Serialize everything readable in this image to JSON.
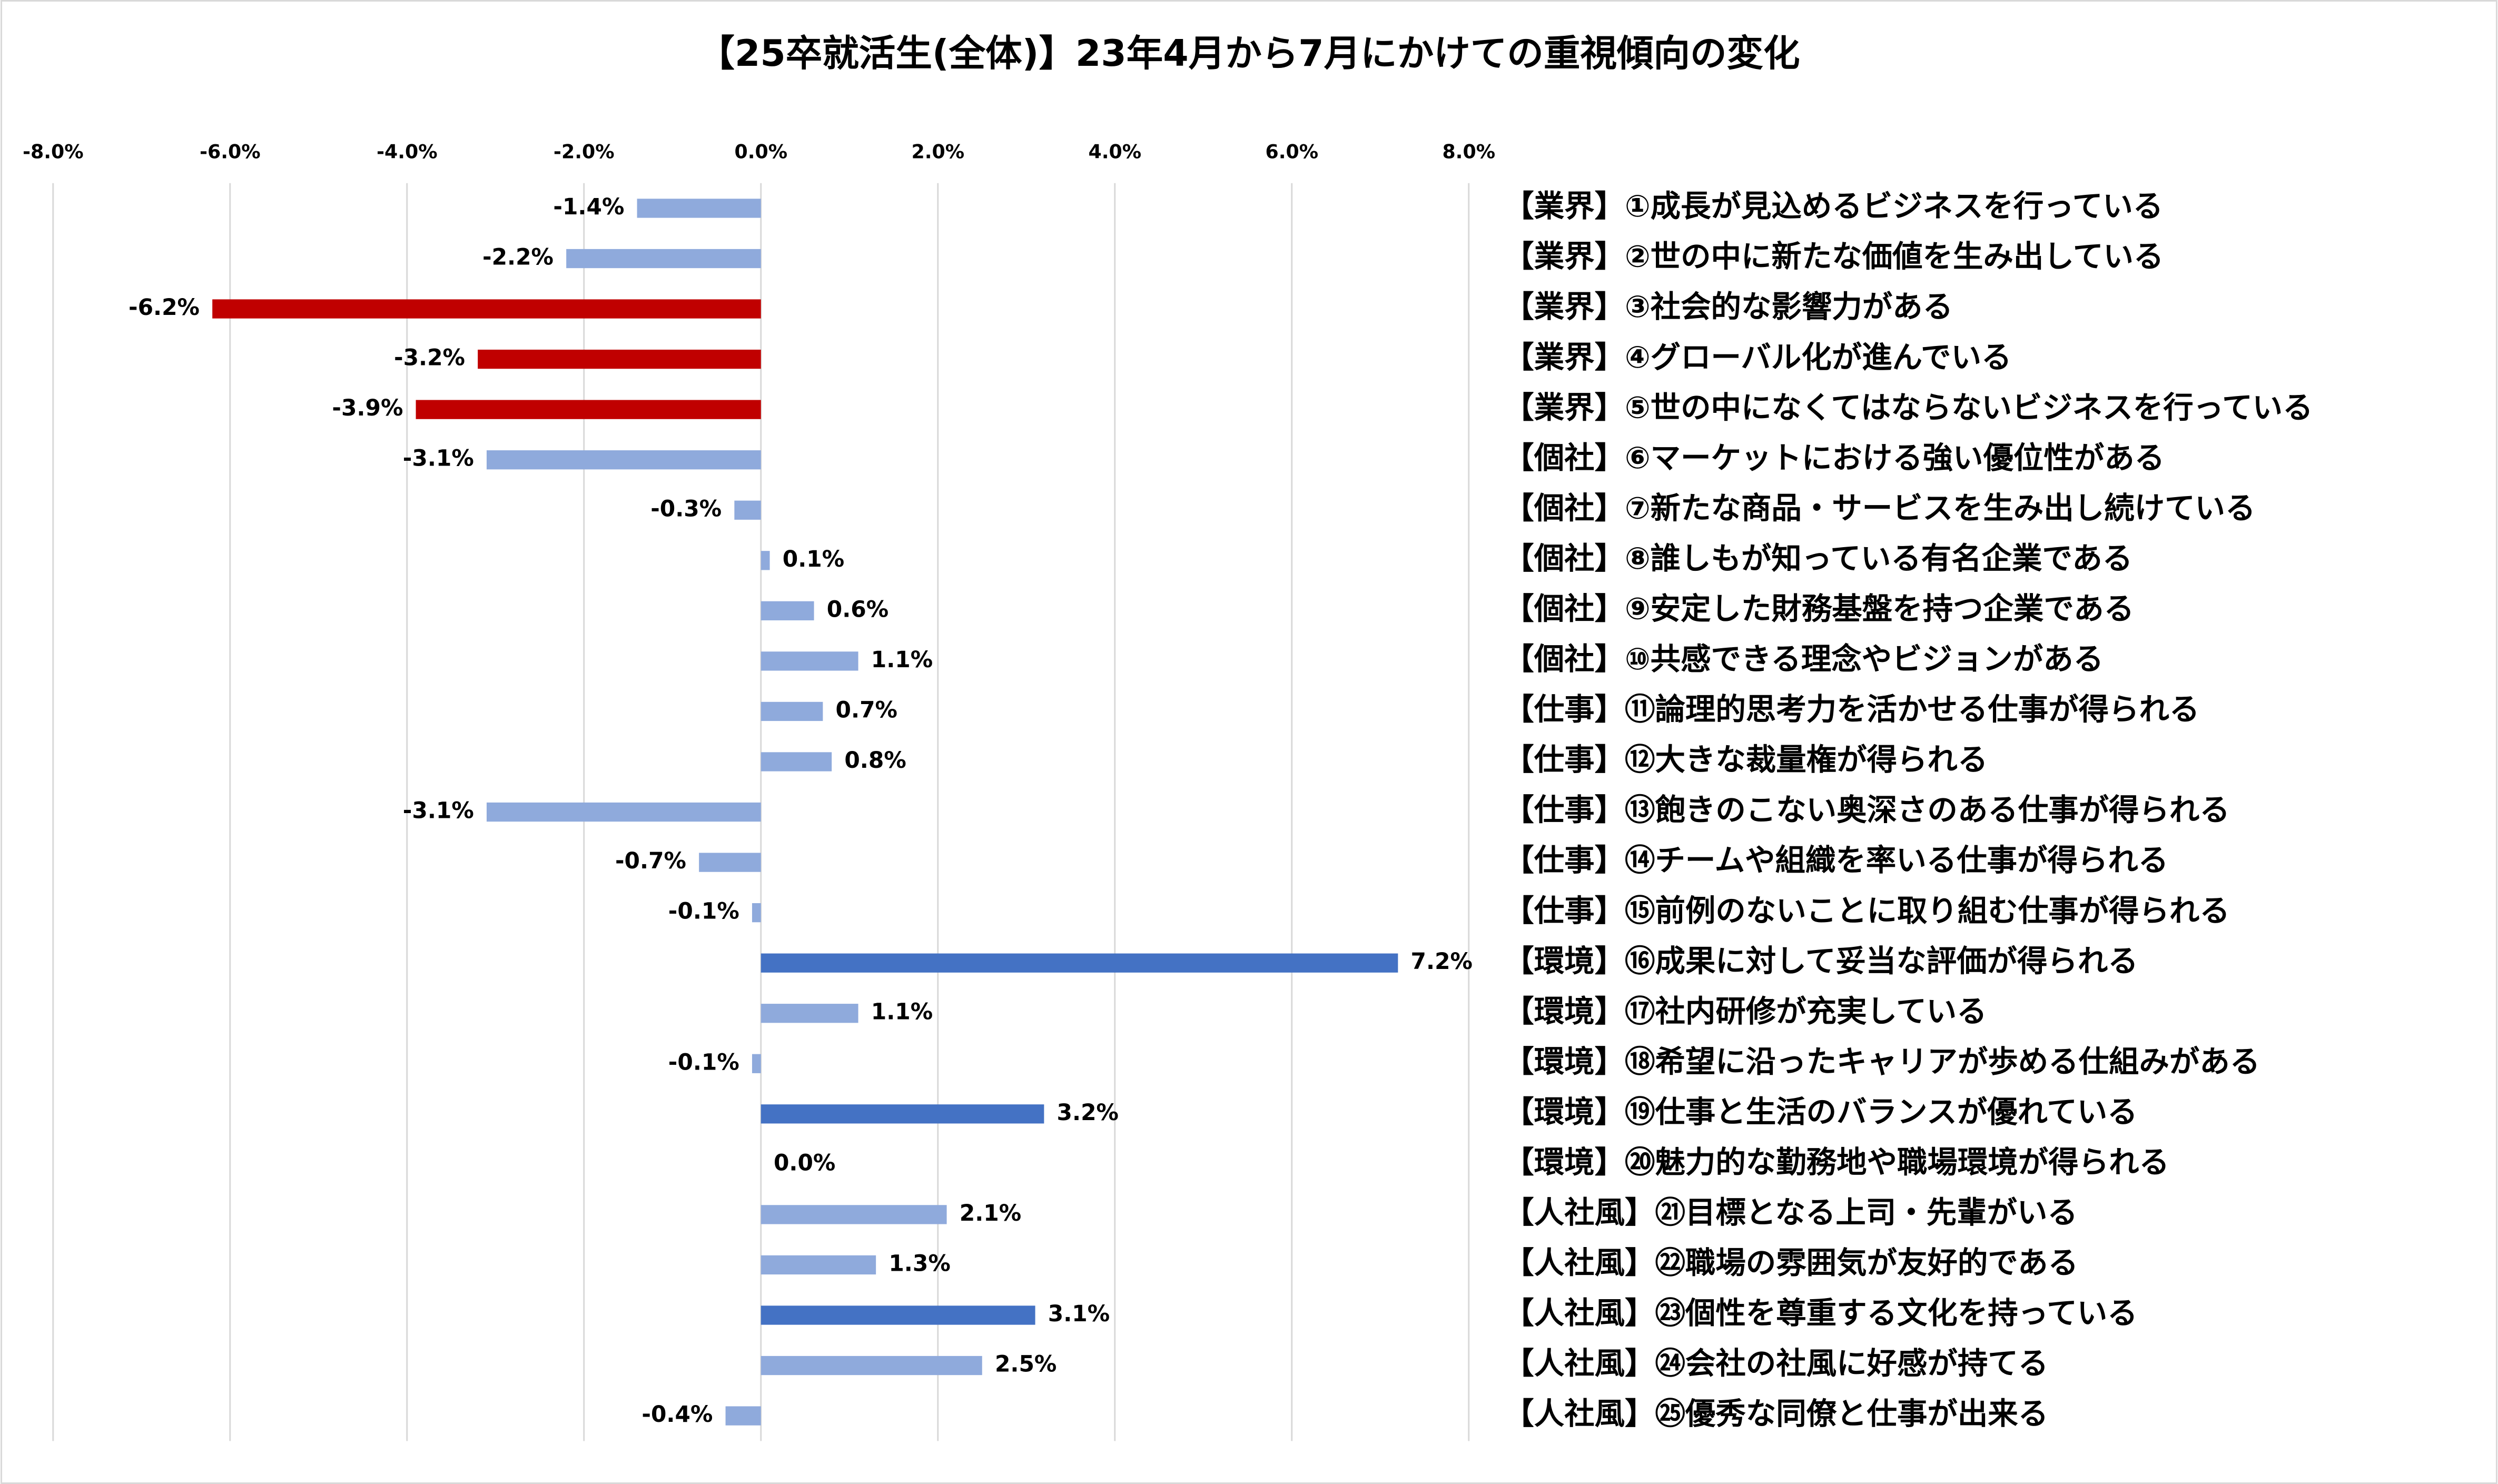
{
  "chart_data": {
    "type": "barh",
    "title": "【25卒就活生(全体)】23年4月から7月にかけての重視傾向の変化",
    "categories": [
      "【業界】①成長が見込めるビジネスを行っている",
      "【業界】②世の中に新たな価値を生み出している",
      "【業界】③社会的な影響力がある",
      "【業界】④グローバル化が進んでいる",
      "【業界】⑤世の中になくてはならないビジネスを行っている",
      "【個社】⑥マーケットにおける強い優位性がある",
      "【個社】⑦新たな商品・サービスを生み出し続けている",
      "【個社】⑧誰しもが知っている有名企業である",
      "【個社】⑨安定した財務基盤を持つ企業である",
      "【個社】⑩共感できる理念やビジョンがある",
      "【仕事】⑪論理的思考力を活かせる仕事が得られる",
      "【仕事】⑫大きな裁量権が得られる",
      "【仕事】⑬飽きのこない奥深さのある仕事が得られる",
      "【仕事】⑭チームや組織を率いる仕事が得られる",
      "【仕事】⑮前例のないことに取り組む仕事が得られる",
      "【環境】⑯成果に対して妥当な評価が得られる",
      "【環境】⑰社内研修が充実している",
      "【環境】⑱希望に沿ったキャリアが歩める仕組みがある",
      "【環境】⑲仕事と生活のバランスが優れている",
      "【環境】⑳魅力的な勤務地や職場環境が得られる",
      "【人社風】㉑目標となる上司・先輩がいる",
      "【人社風】㉒職場の雰囲気が友好的である",
      "【人社風】㉓個性を尊重する文化を持っている",
      "【人社風】㉔会社の社風に好感が持てる",
      "【人社風】㉕優秀な同僚と仕事が出来る"
    ],
    "values": [
      -1.4,
      -2.2,
      -6.2,
      -3.2,
      -3.9,
      -3.1,
      -0.3,
      0.1,
      0.6,
      1.1,
      0.7,
      0.8,
      -3.1,
      -0.7,
      -0.1,
      7.2,
      1.1,
      -0.1,
      3.2,
      0.0,
      2.1,
      1.3,
      3.1,
      2.5,
      -0.4
    ],
    "value_labels": [
      "-1.4%",
      "-2.2%",
      "-6.2%",
      "-3.2%",
      "-3.9%",
      "-3.1%",
      "-0.3%",
      "0.1%",
      "0.6%",
      "1.1%",
      "0.7%",
      "0.8%",
      "-3.1%",
      "-0.7%",
      "-0.1%",
      "7.2%",
      "1.1%",
      "-0.1%",
      "3.2%",
      "0.0%",
      "2.1%",
      "1.3%",
      "3.1%",
      "2.5%",
      "-0.4%"
    ],
    "colors": [
      "#8faadc",
      "#8faadc",
      "#c00000",
      "#c00000",
      "#c00000",
      "#8faadc",
      "#8faadc",
      "#8faadc",
      "#8faadc",
      "#8faadc",
      "#8faadc",
      "#8faadc",
      "#8faadc",
      "#8faadc",
      "#8faadc",
      "#4472c4",
      "#8faadc",
      "#8faadc",
      "#4472c4",
      "#8faadc",
      "#8faadc",
      "#8faadc",
      "#4472c4",
      "#8faadc",
      "#8faadc"
    ],
    "xlim": [
      -8,
      8
    ],
    "xticks": [
      {
        "value": -8,
        "label": "-8.0%"
      },
      {
        "value": -6,
        "label": "-6.0%"
      },
      {
        "value": -4,
        "label": "-4.0%"
      },
      {
        "value": -2,
        "label": "-2.0%"
      },
      {
        "value": 0,
        "label": "0.0%"
      },
      {
        "value": 2,
        "label": "2.0%"
      },
      {
        "value": 4,
        "label": "4.0%"
      },
      {
        "value": 6,
        "label": "6.0%"
      },
      {
        "value": 8,
        "label": "8.0%"
      }
    ],
    "grid": true
  }
}
